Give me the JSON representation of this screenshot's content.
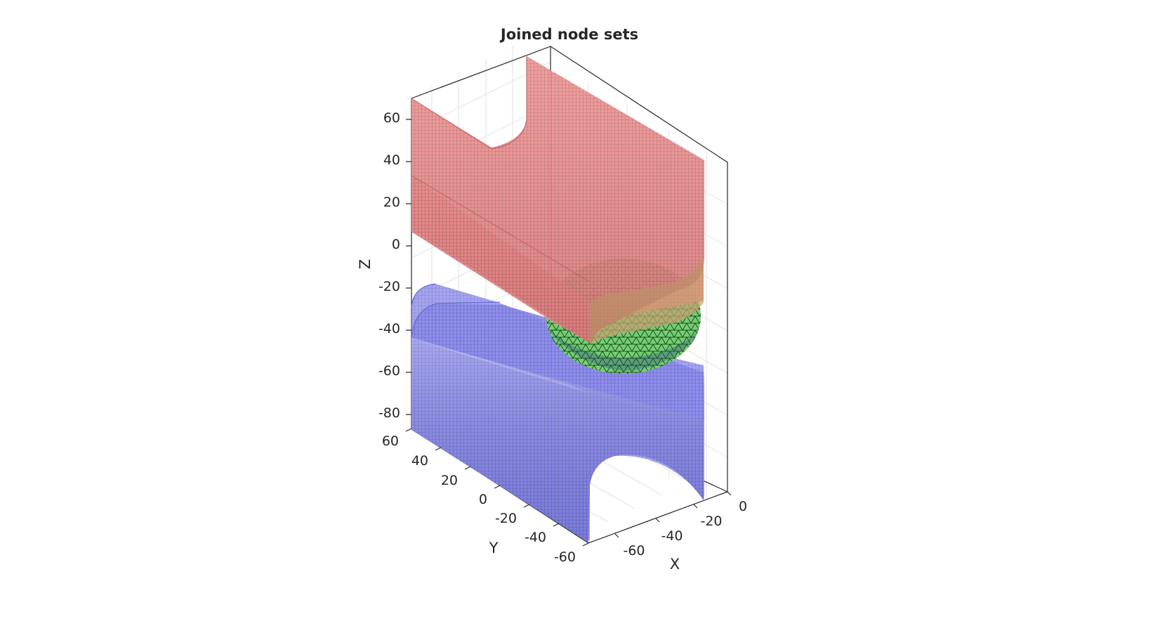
{
  "figure": {
    "title": "Joined node sets",
    "axes": {
      "x": {
        "label": "X",
        "ticks": [
          "-60",
          "-40",
          "-20",
          "0"
        ]
      },
      "y": {
        "label": "Y",
        "ticks": [
          "60",
          "40",
          "20",
          "0",
          "-20",
          "-40",
          "-60"
        ]
      },
      "z": {
        "label": "Z",
        "ticks": [
          "60",
          "40",
          "20",
          "0",
          "-20",
          "-40",
          "-60",
          "-80"
        ]
      }
    },
    "objects": [
      {
        "name": "upper channel",
        "color": "#f08080",
        "edge_color": "#333333"
      },
      {
        "name": "lower channel",
        "color": "#8080f0",
        "edge_color": "#333333"
      },
      {
        "name": "sphere",
        "color": "#80f080",
        "edge_color": "#000000"
      }
    ],
    "background": "#ffffff",
    "box_color": "#262626",
    "grid": true
  }
}
